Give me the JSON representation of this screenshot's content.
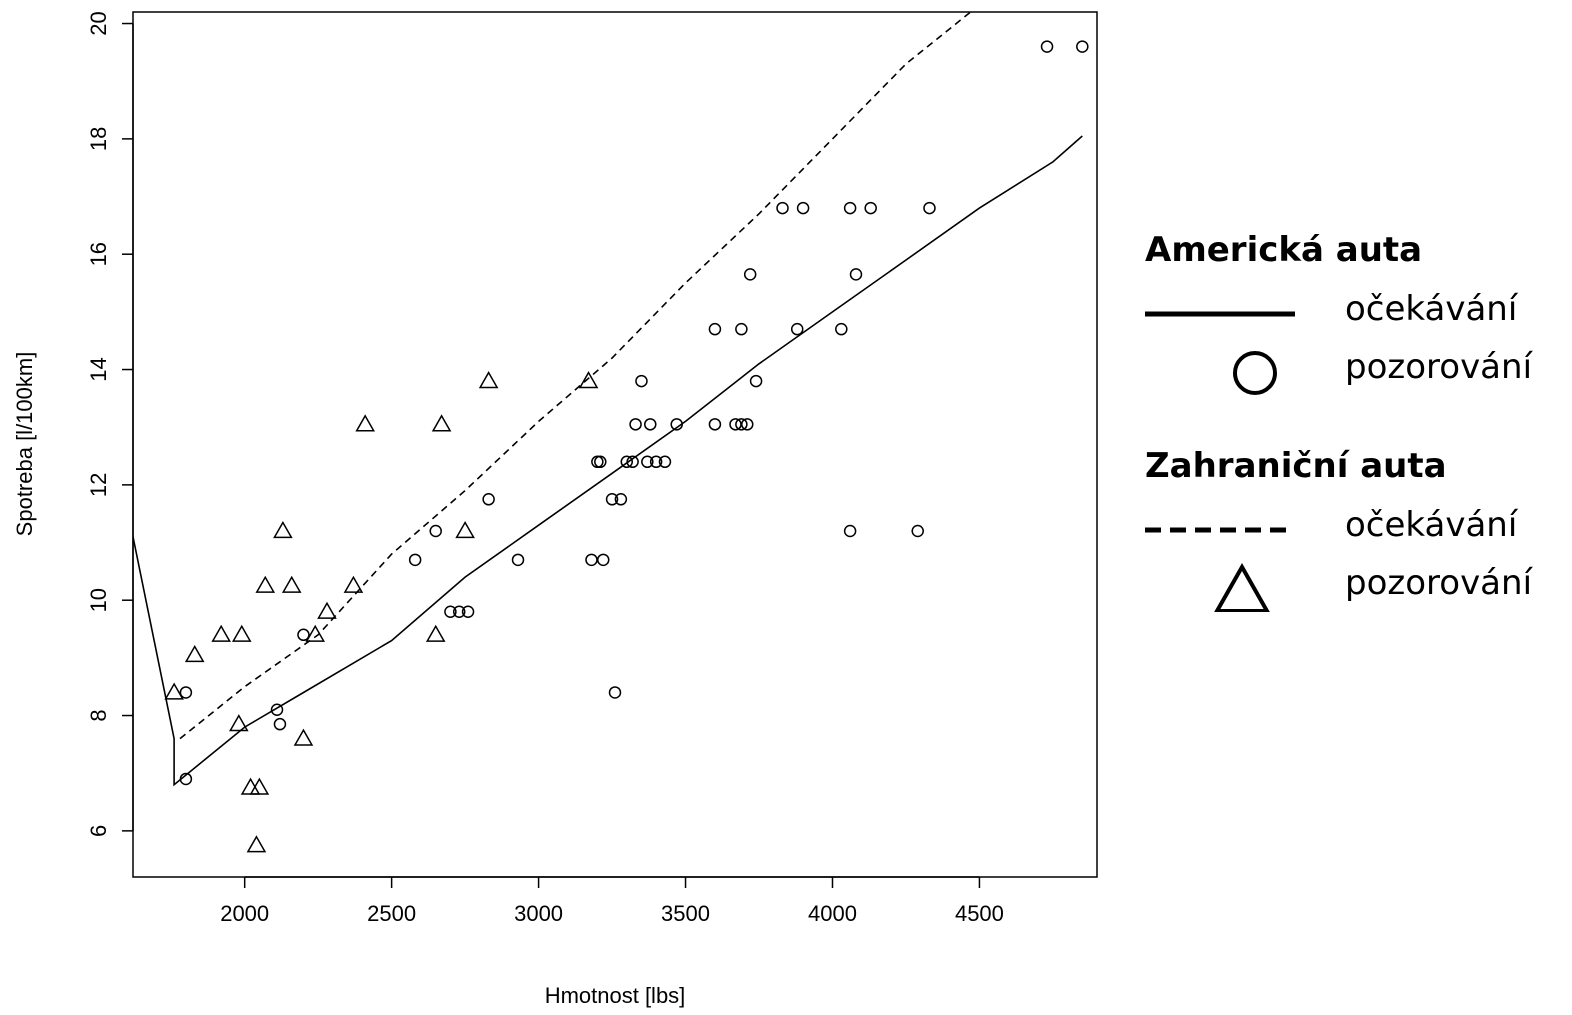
{
  "chart_data": {
    "type": "scatter",
    "title": "",
    "xlabel": "Hmotnost [lbs]",
    "ylabel": "Spotreba [l/100km]",
    "xlim": [
      1620,
      4900
    ],
    "ylim": [
      5.2,
      20.2
    ],
    "xticks": [
      2000,
      2500,
      3000,
      3500,
      4000,
      4500
    ],
    "yticks": [
      6,
      8,
      10,
      12,
      14,
      16,
      18,
      20
    ],
    "grid": false,
    "legend_position": "right",
    "series": [
      {
        "name": "Americká auta",
        "marker": "circle",
        "points": [
          [
            1800,
            8.4
          ],
          [
            1800,
            6.9
          ],
          [
            2110,
            8.1
          ],
          [
            2120,
            7.85
          ],
          [
            2200,
            9.4
          ],
          [
            2580,
            10.7
          ],
          [
            2650,
            11.2
          ],
          [
            2700,
            9.8
          ],
          [
            2730,
            9.8
          ],
          [
            2760,
            9.8
          ],
          [
            2830,
            11.75
          ],
          [
            2930,
            10.7
          ],
          [
            3180,
            10.7
          ],
          [
            3220,
            10.7
          ],
          [
            3200,
            12.4
          ],
          [
            3210,
            12.4
          ],
          [
            3250,
            11.75
          ],
          [
            3280,
            11.75
          ],
          [
            3260,
            8.4
          ],
          [
            3300,
            12.4
          ],
          [
            3320,
            12.4
          ],
          [
            3330,
            13.05
          ],
          [
            3350,
            13.8
          ],
          [
            3370,
            12.4
          ],
          [
            3380,
            13.05
          ],
          [
            3400,
            12.4
          ],
          [
            3430,
            12.4
          ],
          [
            3470,
            13.05
          ],
          [
            3600,
            13.05
          ],
          [
            3600,
            14.7
          ],
          [
            3670,
            13.05
          ],
          [
            3690,
            14.7
          ],
          [
            3690,
            13.05
          ],
          [
            3710,
            13.05
          ],
          [
            3720,
            15.65
          ],
          [
            3740,
            13.8
          ],
          [
            3830,
            16.8
          ],
          [
            3880,
            14.7
          ],
          [
            3900,
            16.8
          ],
          [
            4030,
            14.7
          ],
          [
            4060,
            16.8
          ],
          [
            4080,
            15.65
          ],
          [
            4060,
            11.2
          ],
          [
            4130,
            16.8
          ],
          [
            4290,
            11.2
          ],
          [
            4330,
            16.8
          ],
          [
            4730,
            19.6
          ],
          [
            4850,
            19.6
          ]
        ]
      },
      {
        "name": "Zahraniční auta",
        "marker": "triangle",
        "points": [
          [
            1760,
            8.4
          ],
          [
            1830,
            9.05
          ],
          [
            1920,
            9.4
          ],
          [
            1980,
            7.85
          ],
          [
            1990,
            9.4
          ],
          [
            2020,
            6.75
          ],
          [
            2040,
            5.75
          ],
          [
            2050,
            6.75
          ],
          [
            2070,
            10.25
          ],
          [
            2130,
            11.2
          ],
          [
            2160,
            10.25
          ],
          [
            2200,
            7.6
          ],
          [
            2240,
            9.4
          ],
          [
            2280,
            9.8
          ],
          [
            2370,
            10.25
          ],
          [
            2410,
            13.05
          ],
          [
            2650,
            9.4
          ],
          [
            2670,
            13.05
          ],
          [
            2750,
            11.2
          ],
          [
            2830,
            13.8
          ],
          [
            3170,
            13.8
          ]
        ]
      }
    ],
    "fitted_lines": [
      {
        "series": "Americká auta",
        "style": "solid",
        "points": [
          [
            1620,
            11.1
          ],
          [
            1760,
            7.6
          ],
          [
            1760,
            6.8
          ],
          [
            2000,
            7.8
          ],
          [
            2200,
            8.4
          ],
          [
            2500,
            9.3
          ],
          [
            2750,
            10.4
          ],
          [
            3000,
            11.3
          ],
          [
            3250,
            12.2
          ],
          [
            3500,
            13.1
          ],
          [
            3750,
            14.1
          ],
          [
            4000,
            15.0
          ],
          [
            4250,
            15.9
          ],
          [
            4500,
            16.8
          ],
          [
            4750,
            17.6
          ],
          [
            4850,
            18.05
          ]
        ]
      },
      {
        "series": "Zahraniční auta",
        "style": "dashed",
        "points": [
          [
            1780,
            7.6
          ],
          [
            2000,
            8.5
          ],
          [
            2250,
            9.4
          ],
          [
            2500,
            10.8
          ],
          [
            2750,
            11.9
          ],
          [
            3000,
            13.1
          ],
          [
            3250,
            14.2
          ],
          [
            3500,
            15.5
          ],
          [
            3750,
            16.7
          ],
          [
            4000,
            18.0
          ],
          [
            4250,
            19.3
          ],
          [
            4470,
            20.2
          ]
        ]
      }
    ],
    "legend": {
      "groups": [
        {
          "heading": "Americká auta",
          "entries": [
            {
              "key": "solid-line",
              "label": "očekávání"
            },
            {
              "key": "circle",
              "label": "pozorování"
            }
          ]
        },
        {
          "heading": "Zahraniční auta",
          "entries": [
            {
              "key": "dashed-line",
              "label": "očekávání"
            },
            {
              "key": "triangle",
              "label": "pozorování"
            }
          ]
        }
      ]
    }
  }
}
